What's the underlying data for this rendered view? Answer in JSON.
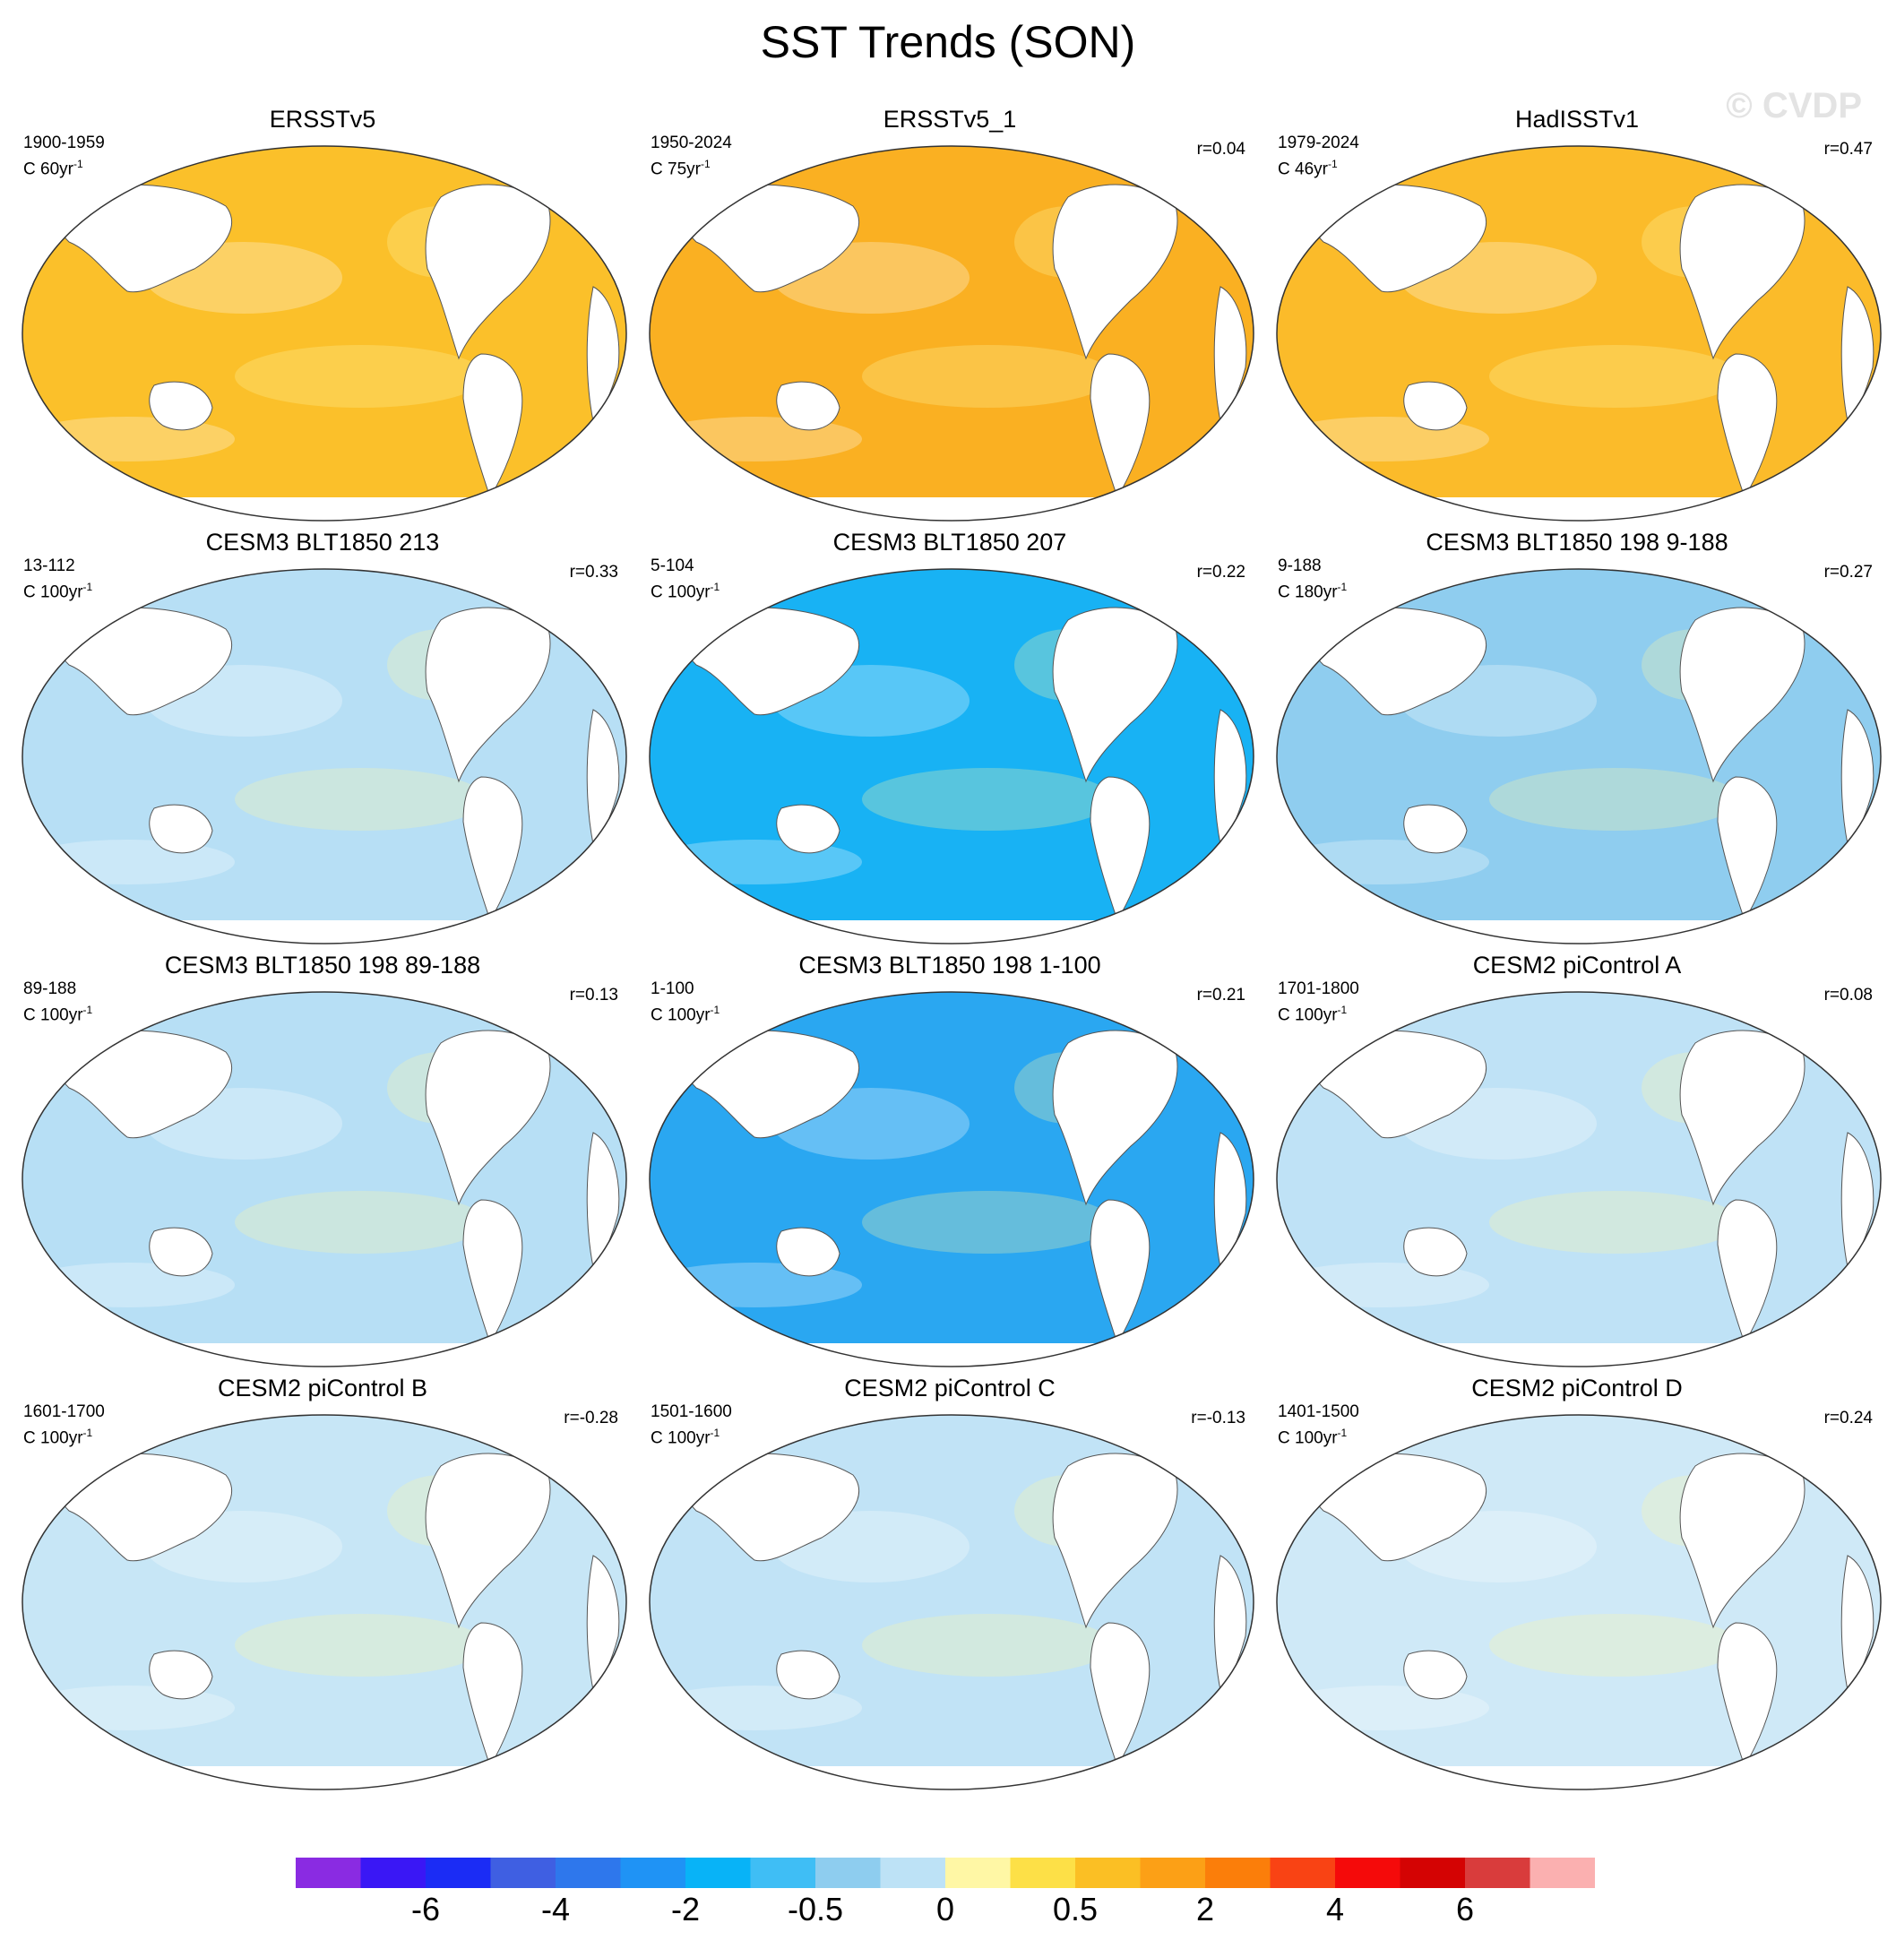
{
  "figure_title": "SST Trends (SON)",
  "watermark": "© CVDP",
  "panels": [
    {
      "title": "ERSSTv5",
      "period": "1900-1959",
      "units_base": "C 60yr",
      "units_exp": "-1",
      "r": "",
      "color": "#fbc02a"
    },
    {
      "title": "ERSSTv5_1",
      "period": "1950-2024",
      "units_base": "C 75yr",
      "units_exp": "-1",
      "r": "r=0.04",
      "color": "#fab022"
    },
    {
      "title": "HadISSTv1",
      "period": "1979-2024",
      "units_base": "C 46yr",
      "units_exp": "-1",
      "r": "r=0.47",
      "color": "#fbbb2a"
    },
    {
      "title": "CESM3 BLT1850 213",
      "period": "13-112",
      "units_base": "C 100yr",
      "units_exp": "-1",
      "r": "r=0.33",
      "color": "#b7dff5"
    },
    {
      "title": "CESM3 BLT1850 207",
      "period": "5-104",
      "units_base": "C 100yr",
      "units_exp": "-1",
      "r": "r=0.22",
      "color": "#18b2f4"
    },
    {
      "title": "CESM3 BLT1850 198 9-188",
      "period": "9-188",
      "units_base": "C 180yr",
      "units_exp": "-1",
      "r": "r=0.27",
      "color": "#8fcdef"
    },
    {
      "title": "CESM3 BLT1850 198 89-188",
      "period": "89-188",
      "units_base": "C 100yr",
      "units_exp": "-1",
      "r": "r=0.13",
      "color": "#b7dff5"
    },
    {
      "title": "CESM3 BLT1850 198 1-100",
      "period": "1-100",
      "units_base": "C 100yr",
      "units_exp": "-1",
      "r": "r=0.21",
      "color": "#2aa7f1"
    },
    {
      "title": "CESM2 piControl A",
      "period": "1701-1800",
      "units_base": "C 100yr",
      "units_exp": "-1",
      "r": "r=0.08",
      "color": "#bfe2f6"
    },
    {
      "title": "CESM2 piControl B",
      "period": "1601-1700",
      "units_base": "C 100yr",
      "units_exp": "-1",
      "r": "r=-0.28",
      "color": "#c7e6f6"
    },
    {
      "title": "CESM2 piControl C",
      "period": "1501-1600",
      "units_base": "C 100yr",
      "units_exp": "-1",
      "r": "r=-0.13",
      "color": "#c1e3f6"
    },
    {
      "title": "CESM2 piControl D",
      "period": "1401-1500",
      "units_base": "C 100yr",
      "units_exp": "-1",
      "r": "r=0.24",
      "color": "#cfe9f7"
    }
  ],
  "colorbar": {
    "colors": [
      "#8a2be2",
      "#3a17f5",
      "#1b2cf5",
      "#3f5fe2",
      "#2e77ec",
      "#1f93f5",
      "#08b3f7",
      "#3fbef5",
      "#8ecdef",
      "#bde2f6",
      "#fff7a5",
      "#fde047",
      "#fbbf24",
      "#fca016",
      "#fb7e0a",
      "#f94314",
      "#f50a0a",
      "#d40303",
      "#d93c3c",
      "#fbb0b0"
    ],
    "labels": [
      "-6",
      "-4",
      "-2",
      "-0.5",
      "0",
      "0.5",
      "2",
      "4",
      "6"
    ],
    "label_boundaries": [
      2,
      4,
      6,
      8,
      10,
      12,
      14,
      16,
      18
    ]
  }
}
